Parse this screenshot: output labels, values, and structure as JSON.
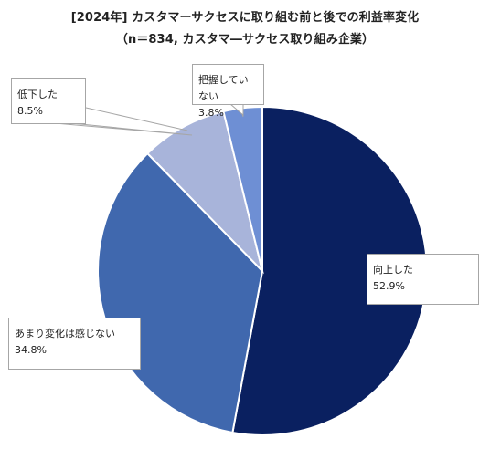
{
  "chart_data": {
    "type": "pie",
    "title": "[2024年] カスタマーサクセスに取り組む前と後での利益率変化",
    "subtitle": "（n＝834, カスタマ―サクセス取り組み企業）",
    "slices": [
      {
        "label": "向上した",
        "value": 52.9,
        "value_text": "52.9%",
        "color": "#0a2060"
      },
      {
        "label": "あまり変化は感じない",
        "value": 34.8,
        "value_text": "34.8%",
        "color": "#4068ae"
      },
      {
        "label": "低下した",
        "value": 8.5,
        "value_text": "8.5%",
        "color": "#a8b4da"
      },
      {
        "label": "把握していない",
        "value": 3.8,
        "value_text": "3.8%",
        "color": "#6e8fd4"
      }
    ],
    "start": "12 o'clock",
    "direction": "clockwise",
    "legend": "none"
  }
}
